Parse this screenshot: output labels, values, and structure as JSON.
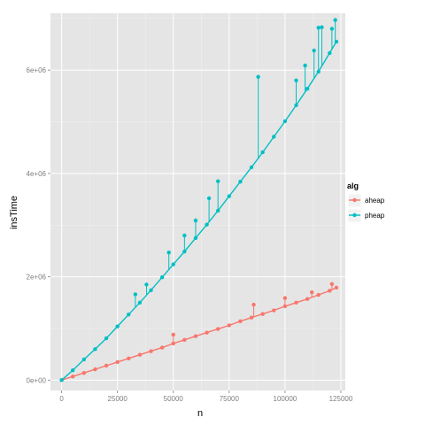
{
  "chart_data": {
    "type": "scatter",
    "xlabel": "n",
    "ylabel": "insTime",
    "legend_title": "alg",
    "legend_position": "right",
    "grid": true,
    "xlim": [
      -5000,
      127000
    ],
    "ylim": [
      -200000,
      7100000
    ],
    "x_ticks": [
      {
        "value": 0,
        "label": "0"
      },
      {
        "value": 25000,
        "label": "25000"
      },
      {
        "value": 50000,
        "label": "50000"
      },
      {
        "value": 75000,
        "label": "75000"
      },
      {
        "value": 100000,
        "label": "100000"
      },
      {
        "value": 125000,
        "label": "125000"
      }
    ],
    "y_ticks": [
      {
        "value": 0,
        "label": "0e+00"
      },
      {
        "value": 2000000,
        "label": "2e+06"
      },
      {
        "value": 4000000,
        "label": "4e+06"
      },
      {
        "value": 6000000,
        "label": "6e+06"
      }
    ],
    "series": [
      {
        "name": "aheap",
        "color": "#F8766D",
        "x": [
          0,
          5000,
          10000,
          15000,
          20000,
          25000,
          30000,
          35000,
          40000,
          45000,
          50000,
          55000,
          60000,
          65000,
          70000,
          75000,
          80000,
          85000,
          90000,
          95000,
          100000,
          105000,
          110000,
          115000,
          120000,
          123000
        ],
        "y": [
          0,
          70000,
          140000,
          210000,
          280000,
          350000,
          420000,
          490000,
          560000,
          630000,
          710000,
          780000,
          850000,
          920000,
          990000,
          1060000,
          1140000,
          1210000,
          1280000,
          1350000,
          1430000,
          1500000,
          1570000,
          1650000,
          1730000,
          1790000
        ]
      },
      {
        "name": "pheap",
        "color": "#00BFC4",
        "x": [
          0,
          5000,
          10000,
          15000,
          20000,
          25000,
          30000,
          35000,
          40000,
          45000,
          50000,
          55000,
          60000,
          65000,
          70000,
          75000,
          80000,
          85000,
          90000,
          95000,
          100000,
          105000,
          110000,
          115000,
          120000,
          123000
        ],
        "y": [
          0,
          190000,
          400000,
          600000,
          810000,
          1040000,
          1270000,
          1500000,
          1740000,
          1990000,
          2240000,
          2490000,
          2750000,
          3010000,
          3280000,
          3560000,
          3840000,
          4120000,
          4410000,
          4710000,
          5010000,
          5320000,
          5640000,
          5970000,
          6330000,
          6550000
        ]
      }
    ],
    "outliers": [
      {
        "series": "pheap",
        "x": 88000,
        "y": 5870000
      },
      {
        "series": "pheap",
        "x": 115000,
        "y": 6820000
      },
      {
        "series": "pheap",
        "x": 116500,
        "y": 6830000
      },
      {
        "series": "pheap",
        "x": 121000,
        "y": 6800000
      },
      {
        "series": "pheap",
        "x": 122500,
        "y": 6970000
      },
      {
        "series": "pheap",
        "x": 113000,
        "y": 6380000
      },
      {
        "series": "pheap",
        "x": 109000,
        "y": 6090000
      },
      {
        "series": "pheap",
        "x": 105000,
        "y": 5800000
      },
      {
        "series": "pheap",
        "x": 70000,
        "y": 3850000
      },
      {
        "series": "pheap",
        "x": 66000,
        "y": 3520000
      },
      {
        "series": "pheap",
        "x": 60000,
        "y": 3090000
      },
      {
        "series": "pheap",
        "x": 55000,
        "y": 2800000
      },
      {
        "series": "pheap",
        "x": 48000,
        "y": 2470000
      },
      {
        "series": "pheap",
        "x": 38000,
        "y": 1850000
      },
      {
        "series": "pheap",
        "x": 33000,
        "y": 1660000
      },
      {
        "series": "aheap",
        "x": 50000,
        "y": 880000
      },
      {
        "series": "aheap",
        "x": 86000,
        "y": 1460000
      },
      {
        "series": "aheap",
        "x": 100000,
        "y": 1590000
      },
      {
        "series": "aheap",
        "x": 112000,
        "y": 1700000
      },
      {
        "series": "aheap",
        "x": 121000,
        "y": 1860000
      }
    ]
  }
}
